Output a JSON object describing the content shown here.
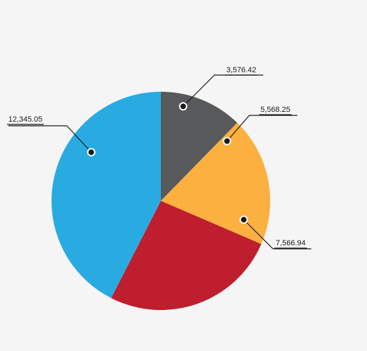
{
  "chart_data": {
    "type": "pie",
    "title": "",
    "slices": [
      {
        "label": "3,576.42",
        "value": 3576.42,
        "color": "#58595b"
      },
      {
        "label": "5,568.25",
        "value": 5568.25,
        "color": "#fbb040"
      },
      {
        "label": "7,566.94",
        "value": 7566.94,
        "color": "#be1e2d"
      },
      {
        "label": "12,345.05",
        "value": 12345.05,
        "color": "#29abe2"
      }
    ],
    "start_angle": "12 o'clock",
    "direction": "clockwise",
    "legend": "none",
    "data_labels": "outside with leader lines"
  }
}
